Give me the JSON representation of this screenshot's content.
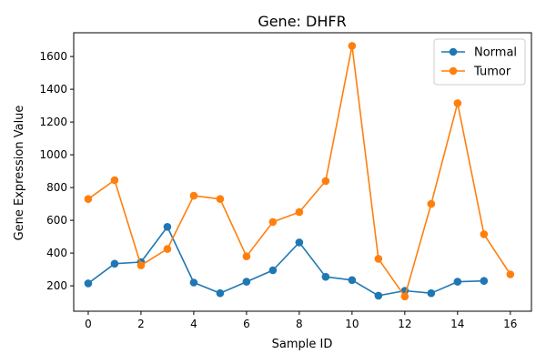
{
  "chart_data": {
    "type": "line",
    "title": "Gene: DHFR",
    "xlabel": "Sample ID",
    "ylabel": "Gene Expression Value",
    "xlim": [
      -0.55,
      16.8
    ],
    "ylim": [
      45,
      1745
    ],
    "xticks": [
      0,
      2,
      4,
      6,
      8,
      10,
      12,
      14,
      16
    ],
    "yticks": [
      200,
      400,
      600,
      800,
      1000,
      1200,
      1400,
      1600
    ],
    "grid": false,
    "legend_position": "top-right",
    "series": [
      {
        "name": "Normal",
        "color": "#1f77b4",
        "x": [
          0,
          1,
          2,
          3,
          4,
          5,
          6,
          7,
          8,
          9,
          10,
          11,
          12,
          13,
          14,
          15
        ],
        "y": [
          215,
          335,
          345,
          560,
          220,
          155,
          225,
          295,
          465,
          255,
          235,
          140,
          170,
          155,
          225,
          230
        ]
      },
      {
        "name": "Tumor",
        "color": "#ff7f0e",
        "x": [
          0,
          1,
          2,
          3,
          4,
          5,
          6,
          7,
          8,
          9,
          10,
          11,
          12,
          13,
          14,
          15,
          16
        ],
        "y": [
          730,
          845,
          325,
          425,
          750,
          730,
          380,
          590,
          650,
          840,
          1665,
          365,
          135,
          700,
          1315,
          515,
          270
        ]
      }
    ]
  }
}
